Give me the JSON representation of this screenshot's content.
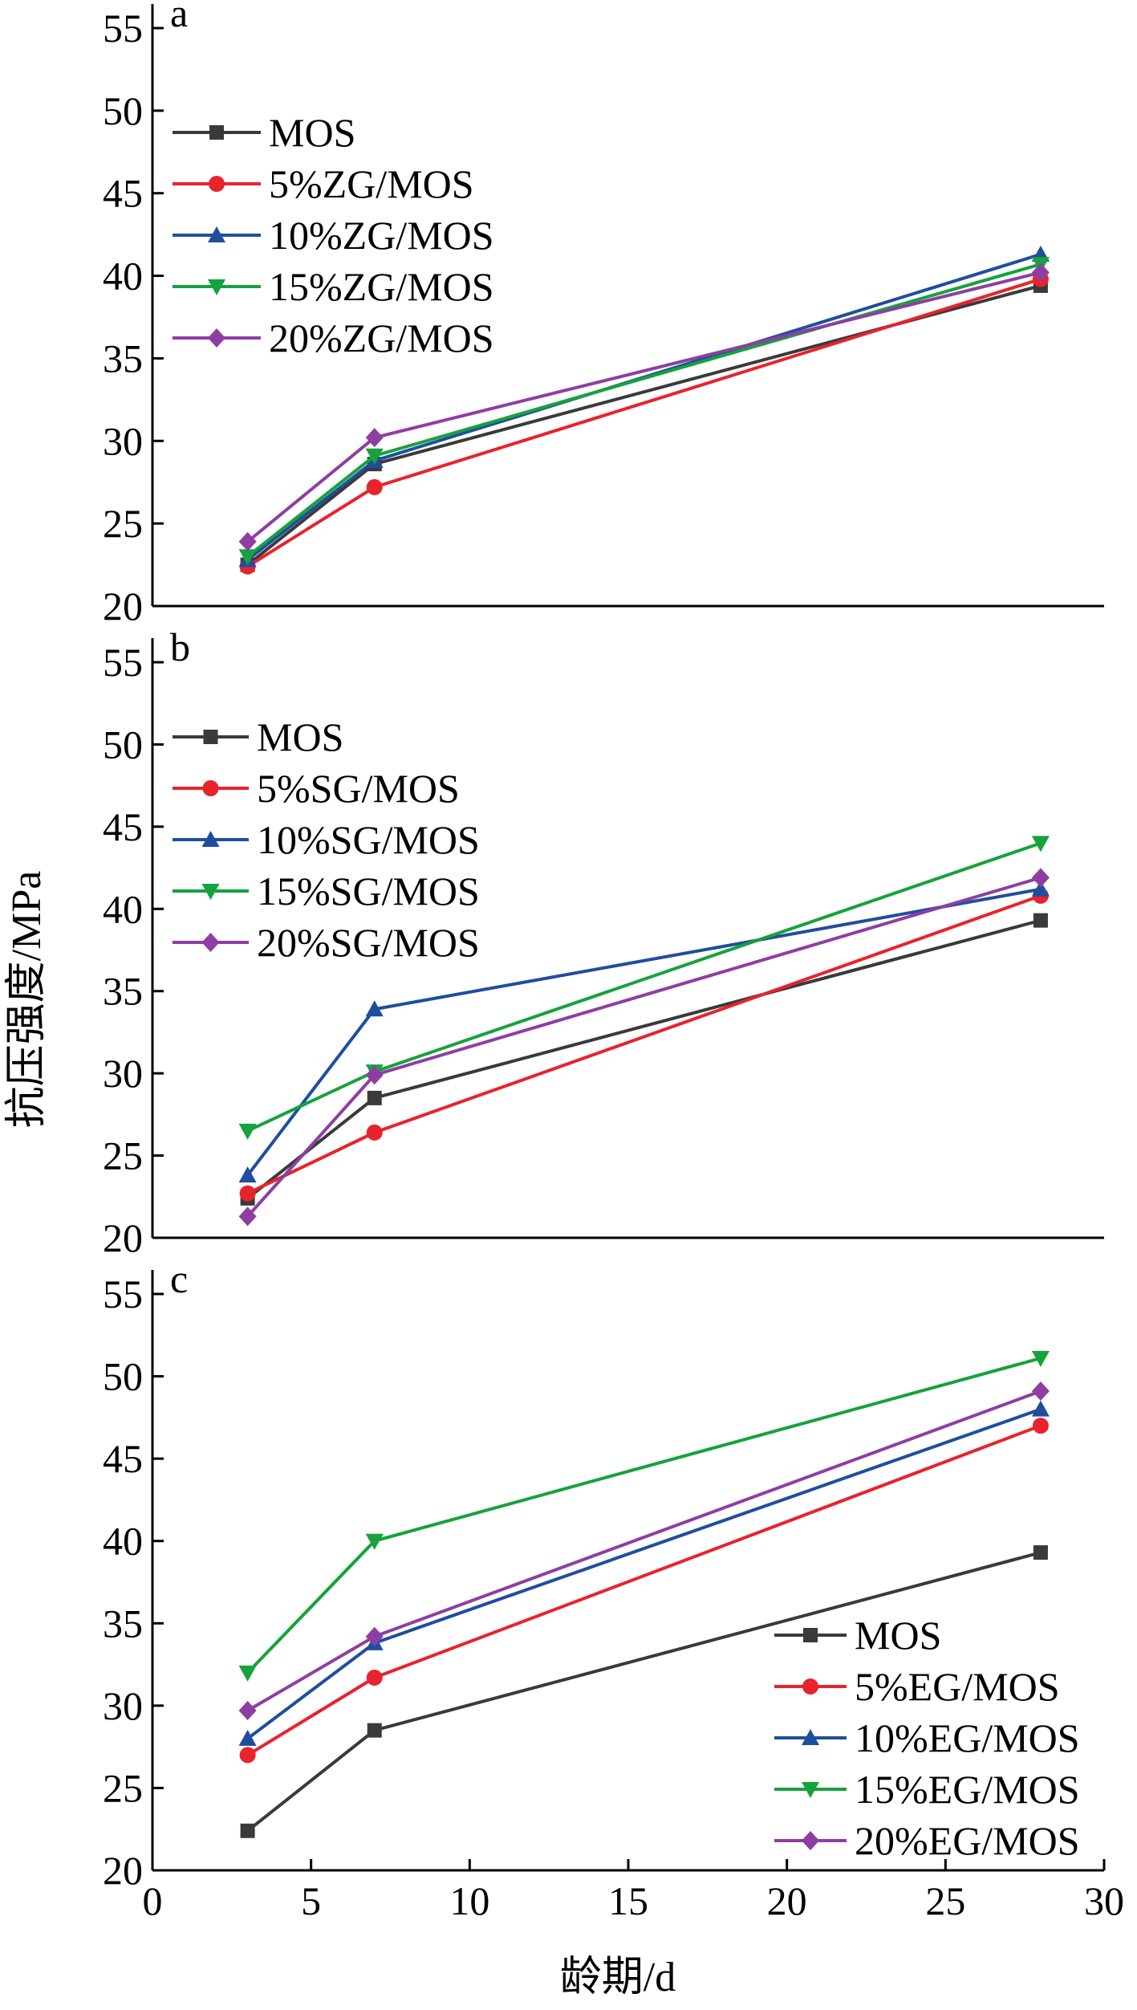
{
  "figure": {
    "ylabel": "抗压强度/MPa",
    "xlabel": "龄期/d"
  },
  "chart_data": [
    {
      "type": "line",
      "panel": "a",
      "x": [
        3,
        7,
        28
      ],
      "xlim": [
        0,
        30
      ],
      "xticks": [
        0,
        5,
        10,
        15,
        20,
        25,
        30
      ],
      "ylim": [
        20,
        55
      ],
      "yticks": [
        20,
        25,
        30,
        35,
        40,
        45,
        50,
        55
      ],
      "legend_position": "upper-left",
      "series": [
        {
          "name": "MOS",
          "values": [
            22.5,
            28.6,
            39.4
          ],
          "color": "#3a3a3a",
          "marker": "square"
        },
        {
          "name": "5%ZG/MOS",
          "values": [
            22.4,
            27.2,
            39.8
          ],
          "color": "#e8232d",
          "marker": "circle"
        },
        {
          "name": "10%ZG/MOS",
          "values": [
            22.8,
            28.8,
            41.3
          ],
          "color": "#1f4e9e",
          "marker": "triangle-up"
        },
        {
          "name": "15%ZG/MOS",
          "values": [
            23.0,
            29.1,
            40.7
          ],
          "color": "#16a23c",
          "marker": "triangle-down"
        },
        {
          "name": "20%ZG/MOS",
          "values": [
            23.9,
            30.2,
            40.2
          ],
          "color": "#8e3ea2",
          "marker": "diamond"
        }
      ]
    },
    {
      "type": "line",
      "panel": "b",
      "x": [
        3,
        7,
        28
      ],
      "xlim": [
        0,
        30
      ],
      "xticks": [
        0,
        5,
        10,
        15,
        20,
        25,
        30
      ],
      "ylim": [
        20,
        55
      ],
      "yticks": [
        20,
        25,
        30,
        35,
        40,
        45,
        50,
        55
      ],
      "legend_position": "upper-left",
      "series": [
        {
          "name": "MOS",
          "values": [
            22.4,
            28.5,
            39.3
          ],
          "color": "#3a3a3a",
          "marker": "square"
        },
        {
          "name": "5%SG/MOS",
          "values": [
            22.7,
            26.4,
            40.8
          ],
          "color": "#e8232d",
          "marker": "circle"
        },
        {
          "name": "10%SG/MOS",
          "values": [
            23.8,
            33.9,
            41.2
          ],
          "color": "#1f4e9e",
          "marker": "triangle-up"
        },
        {
          "name": "15%SG/MOS",
          "values": [
            26.5,
            30.1,
            44.0
          ],
          "color": "#16a23c",
          "marker": "triangle-down"
        },
        {
          "name": "20%SG/MOS",
          "values": [
            21.3,
            29.9,
            41.9
          ],
          "color": "#8e3ea2",
          "marker": "diamond"
        }
      ]
    },
    {
      "type": "line",
      "panel": "c",
      "x": [
        3,
        7,
        28
      ],
      "xlim": [
        0,
        30
      ],
      "xticks": [
        0,
        5,
        10,
        15,
        20,
        25,
        30
      ],
      "ylim": [
        20,
        55
      ],
      "yticks": [
        20,
        25,
        30,
        35,
        40,
        45,
        50,
        55
      ],
      "legend_position": "lower-right",
      "series": [
        {
          "name": "MOS",
          "values": [
            22.4,
            28.5,
            39.3
          ],
          "color": "#3a3a3a",
          "marker": "square"
        },
        {
          "name": "5%EG/MOS",
          "values": [
            27.0,
            31.7,
            47.0
          ],
          "color": "#e8232d",
          "marker": "circle"
        },
        {
          "name": "10%EG/MOS",
          "values": [
            28.0,
            33.8,
            48.0
          ],
          "color": "#1f4e9e",
          "marker": "triangle-up"
        },
        {
          "name": "15%EG/MOS",
          "values": [
            32.0,
            40.0,
            51.1
          ],
          "color": "#16a23c",
          "marker": "triangle-down"
        },
        {
          "name": "20%EG/MOS",
          "values": [
            29.7,
            34.2,
            49.1
          ],
          "color": "#8e3ea2",
          "marker": "diamond"
        }
      ]
    }
  ]
}
